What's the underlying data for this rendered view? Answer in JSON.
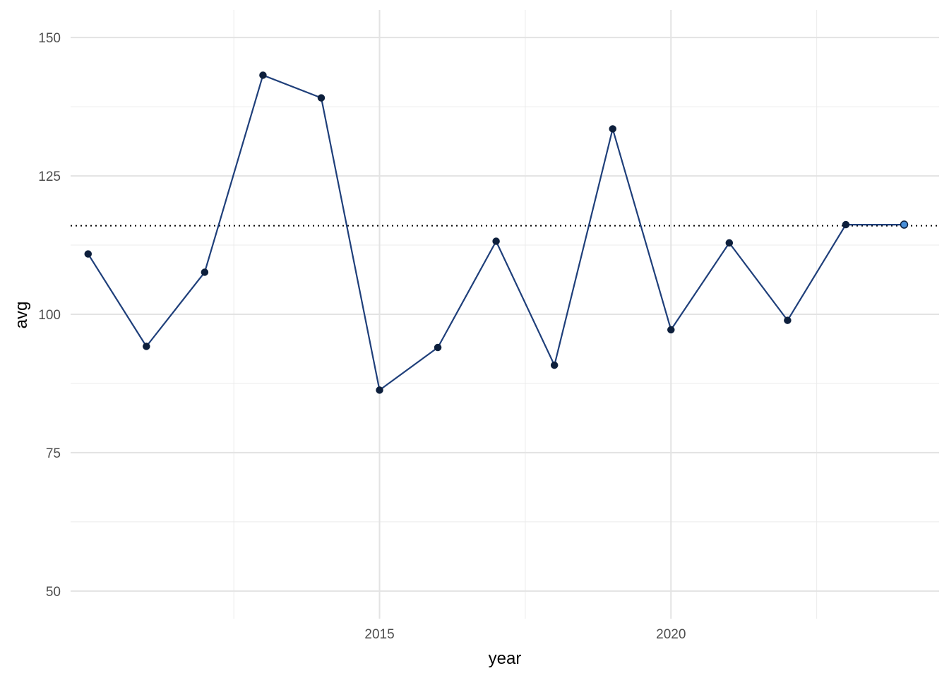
{
  "chart_data": {
    "type": "line",
    "xlabel": "year",
    "ylabel": "avg",
    "xlim": [
      2009.7,
      2024.6
    ],
    "ylim": [
      45,
      155
    ],
    "x_ticks": [
      2015,
      2020
    ],
    "x_tick_labels": [
      "2015",
      "2020"
    ],
    "x_minor_ticks": [
      2012.5,
      2017.5,
      2022.5
    ],
    "y_ticks": [
      50,
      75,
      100,
      125,
      150
    ],
    "y_tick_labels": [
      "50",
      "75",
      "100",
      "125",
      "150"
    ],
    "y_minor_ticks": [
      62.5,
      87.5,
      112.5,
      137.5
    ],
    "grid": true,
    "reference_line": {
      "y": 116,
      "style": "dotted",
      "color": "#000000"
    },
    "series": [
      {
        "x": [
          2010,
          2011,
          2012,
          2013,
          2014,
          2015,
          2016,
          2017,
          2018,
          2019,
          2020,
          2021,
          2022,
          2023,
          2024
        ],
        "values": [
          110.9,
          94.2,
          107.6,
          143.2,
          139.1,
          86.3,
          94.0,
          113.2,
          90.8,
          133.5,
          97.2,
          112.9,
          98.9,
          116.2,
          116.2
        ],
        "line_color": "#1f3f7a",
        "point_color": "#0d1f3c",
        "last_point_color": "#4a90d9"
      }
    ]
  }
}
